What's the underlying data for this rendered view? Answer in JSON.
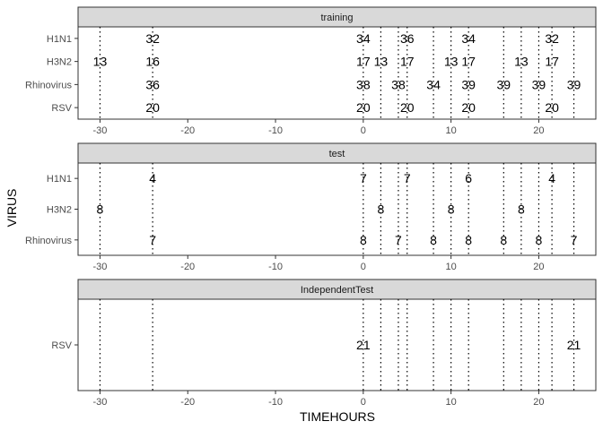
{
  "chart_data": {
    "type": "scatter",
    "xlabel": "TIMEHOURS",
    "ylabel": "VIRUS",
    "xlim": [
      -32.5,
      26.5
    ],
    "xticks": [
      -30,
      -20,
      -10,
      0,
      10,
      20
    ],
    "vlines": [
      -30,
      -24,
      0,
      2,
      4,
      5,
      8,
      10,
      12,
      16,
      18,
      20,
      21.5,
      24
    ],
    "panels": [
      {
        "title": "training",
        "categories": [
          "H1N1",
          "H3N2",
          "Rhinovirus",
          "RSV"
        ],
        "labels": [
          {
            "y": "H1N1",
            "x": -24,
            "label": "32"
          },
          {
            "y": "H1N1",
            "x": 0,
            "label": "34"
          },
          {
            "y": "H1N1",
            "x": 5,
            "label": "36"
          },
          {
            "y": "H1N1",
            "x": 12,
            "label": "34"
          },
          {
            "y": "H1N1",
            "x": 21.5,
            "label": "32"
          },
          {
            "y": "H3N2",
            "x": -30,
            "label": "13"
          },
          {
            "y": "H3N2",
            "x": -24,
            "label": "16"
          },
          {
            "y": "H3N2",
            "x": 0,
            "label": "17"
          },
          {
            "y": "H3N2",
            "x": 2,
            "label": "13"
          },
          {
            "y": "H3N2",
            "x": 5,
            "label": "17"
          },
          {
            "y": "H3N2",
            "x": 10,
            "label": "13"
          },
          {
            "y": "H3N2",
            "x": 12,
            "label": "17"
          },
          {
            "y": "H3N2",
            "x": 18,
            "label": "13"
          },
          {
            "y": "H3N2",
            "x": 21.5,
            "label": "17"
          },
          {
            "y": "Rhinovirus",
            "x": -24,
            "label": "36"
          },
          {
            "y": "Rhinovirus",
            "x": 0,
            "label": "38"
          },
          {
            "y": "Rhinovirus",
            "x": 4,
            "label": "38"
          },
          {
            "y": "Rhinovirus",
            "x": 8,
            "label": "34"
          },
          {
            "y": "Rhinovirus",
            "x": 12,
            "label": "39"
          },
          {
            "y": "Rhinovirus",
            "x": 16,
            "label": "39"
          },
          {
            "y": "Rhinovirus",
            "x": 20,
            "label": "39"
          },
          {
            "y": "Rhinovirus",
            "x": 24,
            "label": "39"
          },
          {
            "y": "RSV",
            "x": -24,
            "label": "20"
          },
          {
            "y": "RSV",
            "x": 0,
            "label": "20"
          },
          {
            "y": "RSV",
            "x": 5,
            "label": "20"
          },
          {
            "y": "RSV",
            "x": 12,
            "label": "20"
          },
          {
            "y": "RSV",
            "x": 21.5,
            "label": "20"
          }
        ]
      },
      {
        "title": "test",
        "categories": [
          "H1N1",
          "H3N2",
          "Rhinovirus"
        ],
        "labels": [
          {
            "y": "H1N1",
            "x": -24,
            "label": "4"
          },
          {
            "y": "H1N1",
            "x": 0,
            "label": "7"
          },
          {
            "y": "H1N1",
            "x": 5,
            "label": "7"
          },
          {
            "y": "H1N1",
            "x": 12,
            "label": "6"
          },
          {
            "y": "H1N1",
            "x": 21.5,
            "label": "4"
          },
          {
            "y": "H3N2",
            "x": -30,
            "label": "8"
          },
          {
            "y": "H3N2",
            "x": 2,
            "label": "8"
          },
          {
            "y": "H3N2",
            "x": 10,
            "label": "8"
          },
          {
            "y": "H3N2",
            "x": 18,
            "label": "8"
          },
          {
            "y": "Rhinovirus",
            "x": -24,
            "label": "7"
          },
          {
            "y": "Rhinovirus",
            "x": 0,
            "label": "8"
          },
          {
            "y": "Rhinovirus",
            "x": 4,
            "label": "7"
          },
          {
            "y": "Rhinovirus",
            "x": 8,
            "label": "8"
          },
          {
            "y": "Rhinovirus",
            "x": 12,
            "label": "8"
          },
          {
            "y": "Rhinovirus",
            "x": 16,
            "label": "8"
          },
          {
            "y": "Rhinovirus",
            "x": 20,
            "label": "8"
          },
          {
            "y": "Rhinovirus",
            "x": 24,
            "label": "7"
          }
        ]
      },
      {
        "title": "IndependentTest",
        "categories": [
          "RSV"
        ],
        "labels": [
          {
            "y": "RSV",
            "x": 0,
            "label": "21"
          },
          {
            "y": "RSV",
            "x": 24,
            "label": "21"
          }
        ]
      }
    ],
    "grid": false,
    "legend": "none"
  }
}
